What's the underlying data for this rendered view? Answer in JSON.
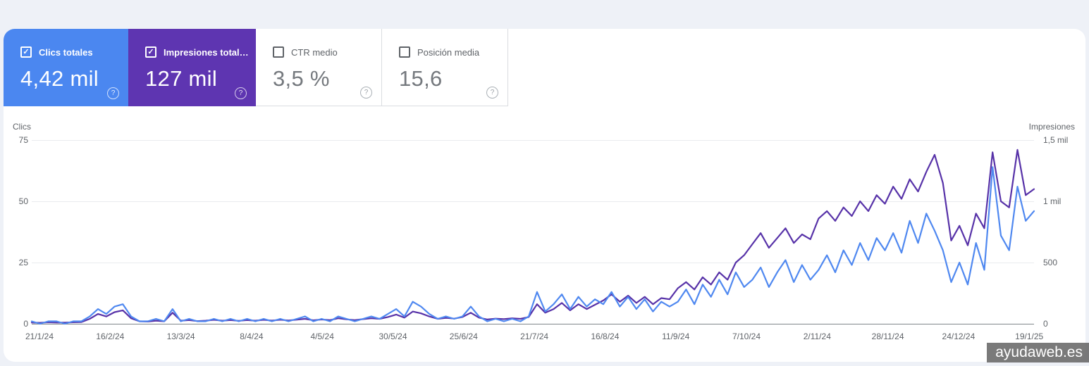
{
  "cards": [
    {
      "label": "Clics totales",
      "value": "4,42 mil",
      "checked": true
    },
    {
      "label": "Impresiones total…",
      "value": "127 mil",
      "checked": true
    },
    {
      "label": "CTR medio",
      "value": "3,5 %",
      "checked": false
    },
    {
      "label": "Posición media",
      "value": "15,6",
      "checked": false
    }
  ],
  "icons": {
    "check": "✓",
    "help": "?"
  },
  "watermark": {
    "text": "ayudaweb.es"
  },
  "colors": {
    "page_bg": "#eef1f7",
    "panel_bg": "#ffffff",
    "clicks_blue_card": "#4b87f0",
    "impressions_purple_card": "#5e35b1",
    "clicks_line": "#4f88f0",
    "impressions_line": "#5732a8",
    "gridline": "#e9ebee",
    "zero_line": "#80868b",
    "axis_text": "#5f6368"
  },
  "chart_data": {
    "type": "line",
    "title": "",
    "grid": true,
    "legend_position": "none",
    "x_tick_labels": [
      "21/1/24",
      "16/2/24",
      "13/3/24",
      "8/4/24",
      "4/5/24",
      "30/5/24",
      "25/6/24",
      "21/7/24",
      "16/8/24",
      "11/9/24",
      "7/10/24",
      "2/11/24",
      "28/11/24",
      "24/12/24",
      "19/1/25"
    ],
    "left_axis": {
      "title": "Clics",
      "ticks": [
        "75",
        "50",
        "25",
        "0"
      ],
      "min": 0,
      "max": 75
    },
    "right_axis": {
      "title": "Impresiones",
      "ticks": [
        "1,5 mil",
        "1 mil",
        "500",
        "0"
      ],
      "min": 0,
      "max": 1500
    },
    "sampling_note": "daily series 21/1/24–19/1/25 sampled every 3 days",
    "series": [
      {
        "name": "Impresiones",
        "axis": "right",
        "color": "#5732a8",
        "values": [
          10,
          8,
          12,
          10,
          9,
          12,
          14,
          40,
          80,
          60,
          95,
          110,
          45,
          20,
          18,
          25,
          20,
          90,
          25,
          30,
          22,
          25,
          32,
          25,
          30,
          24,
          30,
          25,
          32,
          26,
          33,
          27,
          34,
          40,
          28,
          35,
          30,
          45,
          36,
          30,
          38,
          45,
          40,
          55,
          75,
          50,
          100,
          85,
          60,
          40,
          48,
          42,
          55,
          90,
          50,
          35,
          42,
          38,
          45,
          40,
          55,
          160,
          90,
          120,
          170,
          110,
          160,
          120,
          155,
          190,
          240,
          180,
          230,
          170,
          220,
          160,
          210,
          200,
          290,
          340,
          280,
          380,
          320,
          420,
          360,
          500,
          560,
          650,
          740,
          620,
          700,
          780,
          660,
          730,
          690,
          860,
          920,
          840,
          950,
          880,
          1000,
          920,
          1050,
          980,
          1120,
          1020,
          1180,
          1080,
          1240,
          1380,
          1150,
          680,
          800,
          640,
          900,
          780,
          1400,
          1000,
          950,
          1420,
          1050,
          1100
        ]
      },
      {
        "name": "Clics",
        "axis": "left",
        "color": "#4f88f0",
        "values": [
          1,
          0,
          1,
          1,
          0,
          1,
          1,
          3,
          6,
          4,
          7,
          8,
          3,
          1,
          1,
          2,
          1,
          6,
          1,
          2,
          1,
          1,
          2,
          1,
          2,
          1,
          2,
          1,
          2,
          1,
          2,
          1,
          2,
          3,
          1,
          2,
          1,
          3,
          2,
          1,
          2,
          3,
          2,
          4,
          6,
          3,
          9,
          7,
          4,
          2,
          3,
          2,
          3,
          7,
          3,
          1,
          2,
          1,
          2,
          1,
          3,
          13,
          5,
          8,
          12,
          6,
          11,
          7,
          10,
          8,
          13,
          7,
          11,
          6,
          10,
          5,
          9,
          7,
          9,
          14,
          8,
          16,
          11,
          18,
          12,
          21,
          15,
          18,
          23,
          15,
          21,
          26,
          17,
          24,
          18,
          22,
          28,
          21,
          30,
          24,
          33,
          26,
          35,
          30,
          37,
          29,
          42,
          33,
          45,
          38,
          30,
          17,
          25,
          16,
          33,
          22,
          64,
          36,
          30,
          56,
          42,
          46
        ]
      }
    ]
  }
}
